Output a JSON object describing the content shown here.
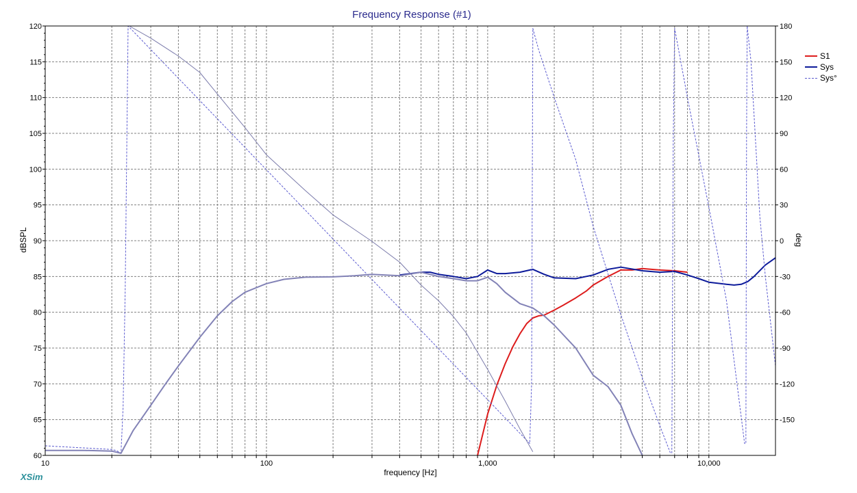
{
  "chart_data": {
    "type": "line",
    "title": "Frequency Response (#1)",
    "xlabel": "frequency [Hz]",
    "ylabel": "dBSPL",
    "y2label": "deg",
    "xscale": "log",
    "xlim": [
      10,
      20000
    ],
    "ylim": [
      60,
      120
    ],
    "y2lim": [
      -180,
      180
    ],
    "grid": true,
    "legend_position": "top-right",
    "x_tick_labels": [
      {
        "value": 10,
        "label": "10"
      },
      {
        "value": 100,
        "label": "100"
      },
      {
        "value": 1000,
        "label": "1,000"
      },
      {
        "value": 10000,
        "label": "10,000"
      }
    ],
    "y_ticks": [
      60,
      65,
      70,
      75,
      80,
      85,
      90,
      95,
      100,
      105,
      110,
      115,
      120
    ],
    "y2_ticks": [
      -150,
      -120,
      -90,
      -60,
      -30,
      0,
      30,
      60,
      90,
      120,
      150,
      180
    ],
    "brand": "XSim",
    "series": [
      {
        "name": "S1",
        "axis": "y",
        "color": "#dd1c1c",
        "width": 2,
        "dash": "solid",
        "x": [
          900,
          1000,
          1100,
          1200,
          1300,
          1400,
          1500,
          1600,
          1700,
          1800,
          2000,
          2200,
          2500,
          2800,
          3000,
          3500,
          4000,
          4500,
          5000,
          5500,
          6000,
          7000,
          8000
        ],
        "y": [
          60.0,
          65.8,
          69.8,
          72.8,
          75.2,
          77.0,
          78.4,
          79.2,
          79.5,
          79.6,
          80.3,
          81.0,
          82.0,
          83.0,
          83.8,
          85.0,
          85.9,
          85.9,
          86.1,
          86.0,
          85.9,
          85.8,
          85.6
        ]
      },
      {
        "name": "Sys",
        "axis": "y",
        "color": "#0c1a9a",
        "width": 2,
        "dash": "solid",
        "x": [
          400,
          500,
          550,
          600,
          700,
          800,
          900,
          1000,
          1100,
          1200,
          1400,
          1600,
          1800,
          2000,
          2500,
          3000,
          3500,
          4000,
          5000,
          6000,
          7000,
          8000,
          9000,
          10000,
          12000,
          13000,
          14000,
          15000,
          16000,
          18000,
          20000
        ],
        "y": [
          85.2,
          85.6,
          85.6,
          85.3,
          85.0,
          84.7,
          85.0,
          85.9,
          85.4,
          85.4,
          85.6,
          86.0,
          85.3,
          84.8,
          84.7,
          85.2,
          86.0,
          86.3,
          85.8,
          85.6,
          85.7,
          85.2,
          84.7,
          84.2,
          83.9,
          83.8,
          83.9,
          84.3,
          85.0,
          86.6,
          87.6
        ]
      },
      {
        "name": "Sys°",
        "axis": "y2",
        "color": "#5a5acf",
        "width": 1,
        "dash": "dashed",
        "x": [
          10,
          20,
          21,
          22,
          22.5,
          23,
          23.7,
          1550,
          1580,
          1600,
          1700,
          2000,
          2500,
          3000,
          3500,
          4000,
          5000,
          6000,
          6700,
          6800,
          6900,
          7000,
          8000,
          10000,
          12000,
          14500,
          14700,
          14800,
          14900,
          15500,
          17000,
          18000,
          20000
        ],
        "y": [
          -172,
          -175,
          -176,
          -178,
          -140,
          -40,
          180,
          -170,
          -120,
          178,
          160,
          120,
          68,
          12,
          -28,
          -62,
          -115,
          -155,
          -178,
          -178,
          80,
          178,
          120,
          28,
          -50,
          -170,
          -170,
          90,
          180,
          150,
          20,
          -30,
          -105
        ]
      },
      {
        "name": "",
        "axis": "y",
        "color": "#7b7bab",
        "width": 1,
        "dash": "solid",
        "x": [
          24,
          30,
          40,
          50,
          60,
          80,
          100,
          150,
          200,
          300,
          400,
          500,
          600,
          700,
          800,
          1000,
          1200,
          1400,
          1600
        ],
        "y": [
          120.0,
          118.3,
          115.8,
          113.5,
          110.5,
          105.8,
          102.0,
          97.0,
          93.6,
          89.9,
          87.0,
          83.8,
          81.6,
          79.4,
          77.1,
          72.0,
          67.6,
          63.7,
          60.5
        ]
      },
      {
        "name": "",
        "axis": "y",
        "color": "#8282b6",
        "width": 2,
        "dash": "solid",
        "x": [
          10,
          15,
          20,
          22,
          25,
          30,
          35,
          40,
          50,
          60,
          70,
          80,
          100,
          120,
          150,
          200,
          250,
          300,
          400,
          500,
          600,
          700,
          800,
          900,
          1000,
          1100,
          1200,
          1400,
          1600,
          1800,
          2000,
          2500,
          3000,
          3500,
          4000,
          4500,
          5000
        ],
        "y": [
          60.7,
          60.7,
          60.6,
          60.3,
          63.5,
          67.0,
          70.0,
          72.5,
          76.5,
          79.5,
          81.5,
          82.8,
          84.0,
          84.6,
          84.9,
          84.95,
          85.1,
          85.3,
          85.1,
          85.6,
          85.0,
          84.7,
          84.4,
          84.4,
          84.9,
          84.0,
          82.8,
          81.2,
          80.6,
          79.5,
          78.2,
          75.0,
          71.2,
          69.6,
          67.0,
          63.0,
          60.0
        ]
      }
    ]
  }
}
